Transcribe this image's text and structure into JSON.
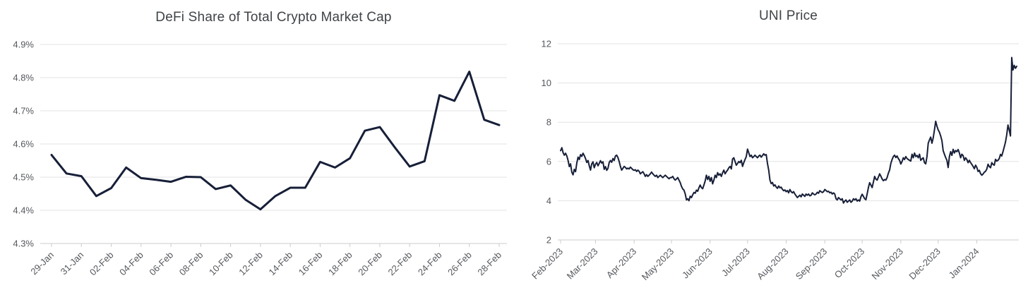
{
  "page": {
    "background": "#ffffff"
  },
  "chart_data": [
    {
      "id": "defi-share",
      "type": "line",
      "title": "DeFi Share of Total Crypto Market Cap",
      "xlabel": "",
      "ylabel": "",
      "grid": true,
      "legend": "none",
      "line_color": "#171f38",
      "grid_color": "#e3e3e3",
      "axis_color": "#cccccc",
      "label_color": "#55585d",
      "title_color": "#3f4347",
      "ylim": [
        4.3,
        4.9
      ],
      "y_tick_values": [
        4.3,
        4.4,
        4.5,
        4.6,
        4.7,
        4.8,
        4.9
      ],
      "y_tick_labels": [
        "4.3%",
        "4.4%",
        "4.5%",
        "4.6%",
        "4.7%",
        "4.8%",
        "4.9%"
      ],
      "x_tick_labels": [
        "29-Jan",
        "31-Jan",
        "02-Feb",
        "04-Feb",
        "06-Feb",
        "08-Feb",
        "10-Feb",
        "12-Feb",
        "14-Feb",
        "16-Feb",
        "18-Feb",
        "20-Feb",
        "22-Feb",
        "24-Feb",
        "26-Feb",
        "28-Feb"
      ],
      "x_tick_indices": [
        0,
        2,
        4,
        6,
        8,
        10,
        12,
        14,
        16,
        18,
        20,
        22,
        24,
        26,
        28,
        30
      ],
      "values": [
        4.567,
        4.511,
        4.503,
        4.443,
        4.467,
        4.529,
        4.497,
        4.492,
        4.486,
        4.501,
        4.5,
        4.464,
        4.475,
        4.432,
        4.403,
        4.443,
        4.468,
        4.468,
        4.546,
        4.529,
        4.557,
        4.64,
        4.651,
        4.59,
        4.532,
        4.548,
        4.747,
        4.73,
        4.818,
        4.673,
        4.657
      ]
    },
    {
      "id": "uni-price",
      "type": "line",
      "title": "UNI Price",
      "xlabel": "",
      "ylabel": "",
      "grid": true,
      "legend": "none",
      "line_color": "#171f38",
      "grid_color": "#e3e3e3",
      "axis_color": "#cccccc",
      "label_color": "#55585d",
      "title_color": "#3f4347",
      "ylim": [
        2,
        12
      ],
      "y_tick_values": [
        2,
        4,
        6,
        8,
        10,
        12
      ],
      "y_tick_labels": [
        "2",
        "4",
        "6",
        "8",
        "10",
        "12"
      ],
      "x_tick_labels": [
        "Feb-2023",
        "Mar-2023",
        "Apr-2023",
        "May-2023",
        "Jun-2023",
        "Jul-2023",
        "Aug-2023",
        "Sep-2023",
        "Oct-2023",
        "Nov-2023",
        "Dec-2023",
        "Jan-2024"
      ],
      "x_tick_indices": [
        0,
        28,
        59,
        89,
        120,
        150,
        181,
        212,
        242,
        273,
        303,
        334
      ],
      "values": [
        6.55,
        6.7,
        6.45,
        6.32,
        6.42,
        6.28,
        6.05,
        5.74,
        5.88,
        5.45,
        5.32,
        5.6,
        5.48,
        5.92,
        6.22,
        6.1,
        6.35,
        6.26,
        6.42,
        6.3,
        6.15,
        5.95,
        6.05,
        5.78,
        5.56,
        5.88,
        5.98,
        5.68,
        5.86,
        5.95,
        5.78,
        5.9,
        6.04,
        5.92,
        5.98,
        5.6,
        5.74,
        5.55,
        5.65,
        5.95,
        6.05,
        5.96,
        6.15,
        6.05,
        6.28,
        6.32,
        6.2,
        6.0,
        5.75,
        5.56,
        5.65,
        5.75,
        5.7,
        5.62,
        5.66,
        5.62,
        5.71,
        5.65,
        5.58,
        5.55,
        5.58,
        5.49,
        5.56,
        5.5,
        5.37,
        5.43,
        5.48,
        5.37,
        5.24,
        5.33,
        5.24,
        5.3,
        5.37,
        5.46,
        5.37,
        5.3,
        5.24,
        5.3,
        5.18,
        5.24,
        5.3,
        5.24,
        5.18,
        5.24,
        5.3,
        5.24,
        5.18,
        5.12,
        5.18,
        5.18,
        5.24,
        5.12,
        5.05,
        5.11,
        5.18,
        5.05,
        4.92,
        4.73,
        4.6,
        4.54,
        4.35,
        4.04,
        4.1,
        4.0,
        4.23,
        4.16,
        4.3,
        4.42,
        4.38,
        4.54,
        4.48,
        4.66,
        4.8,
        4.67,
        4.61,
        4.8,
        5.0,
        5.3,
        5.08,
        5.24,
        4.99,
        5.18,
        4.86,
        5.05,
        5.3,
        5.18,
        5.43,
        5.3,
        5.37,
        5.24,
        5.43,
        5.56,
        5.37,
        5.48,
        5.56,
        5.68,
        5.75,
        5.62,
        6.13,
        6.19,
        6.0,
        5.81,
        5.9,
        6.0,
        5.94,
        6.06,
        5.75,
        5.94,
        6.1,
        6.25,
        6.63,
        6.44,
        6.25,
        6.32,
        6.19,
        6.25,
        6.32,
        6.25,
        6.19,
        6.28,
        6.32,
        6.22,
        6.3,
        6.39,
        6.32,
        6.35,
        5.9,
        5.56,
        5.05,
        4.87,
        4.93,
        4.75,
        4.81,
        4.7,
        4.63,
        4.75,
        4.66,
        4.69,
        4.58,
        4.51,
        4.55,
        4.46,
        4.52,
        4.4,
        4.57,
        4.46,
        4.4,
        4.46,
        4.34,
        4.25,
        4.16,
        4.22,
        4.28,
        4.2,
        4.34,
        4.28,
        4.22,
        4.34,
        4.28,
        4.34,
        4.25,
        4.28,
        4.4,
        4.34,
        4.3,
        4.34,
        4.43,
        4.38,
        4.51,
        4.46,
        4.42,
        4.46,
        4.57,
        4.52,
        4.46,
        4.48,
        4.4,
        4.43,
        4.34,
        4.4,
        4.34,
        4.1,
        4.04,
        4.16,
        4.1,
        4.04,
        4.1,
        3.88,
        3.98,
        4.04,
        3.92,
        3.98,
        4.04,
        3.92,
        3.98,
        4.1,
        4.04,
        4.1,
        3.98,
        4.04,
        3.98,
        4.2,
        4.33,
        4.22,
        4.1,
        4.05,
        4.35,
        4.67,
        4.92,
        4.8,
        4.67,
        4.95,
        5.24,
        5.1,
        5.05,
        5.2,
        5.37,
        5.25,
        5.11,
        5.02,
        5.08,
        5.05,
        5.18,
        5.4,
        5.56,
        5.9,
        6.1,
        6.25,
        6.32,
        6.2,
        6.28,
        6.15,
        6.06,
        5.87,
        6.0,
        6.19,
        6.1,
        6.25,
        6.15,
        6.1,
        6.06,
        6.02,
        6.37,
        6.19,
        6.43,
        6.25,
        6.31,
        6.19,
        6.37,
        6.06,
        6.13,
        6.19,
        5.94,
        5.88,
        6.25,
        6.93,
        7.1,
        7.24,
        6.93,
        7.2,
        7.61,
        8.05,
        7.8,
        7.61,
        7.49,
        7.3,
        7.06,
        6.55,
        6.37,
        6.2,
        6.06,
        5.69,
        6.25,
        6.5,
        6.31,
        6.62,
        6.43,
        6.56,
        6.5,
        6.61,
        6.43,
        6.19,
        6.37,
        6.3,
        6.06,
        6.19,
        6.1,
        5.94,
        6.06,
        5.94,
        5.85,
        5.75,
        5.63,
        5.81,
        5.7,
        5.49,
        5.55,
        5.38,
        5.3,
        5.36,
        5.45,
        5.5,
        5.61,
        5.86,
        5.74,
        5.68,
        5.94,
        5.85,
        5.81,
        6.11,
        6.02,
        6.06,
        6.15,
        6.36,
        6.28,
        6.5,
        6.74,
        6.99,
        7.36,
        7.86,
        7.6,
        7.3,
        11.3,
        10.66,
        10.9,
        10.75,
        10.85
      ]
    }
  ]
}
